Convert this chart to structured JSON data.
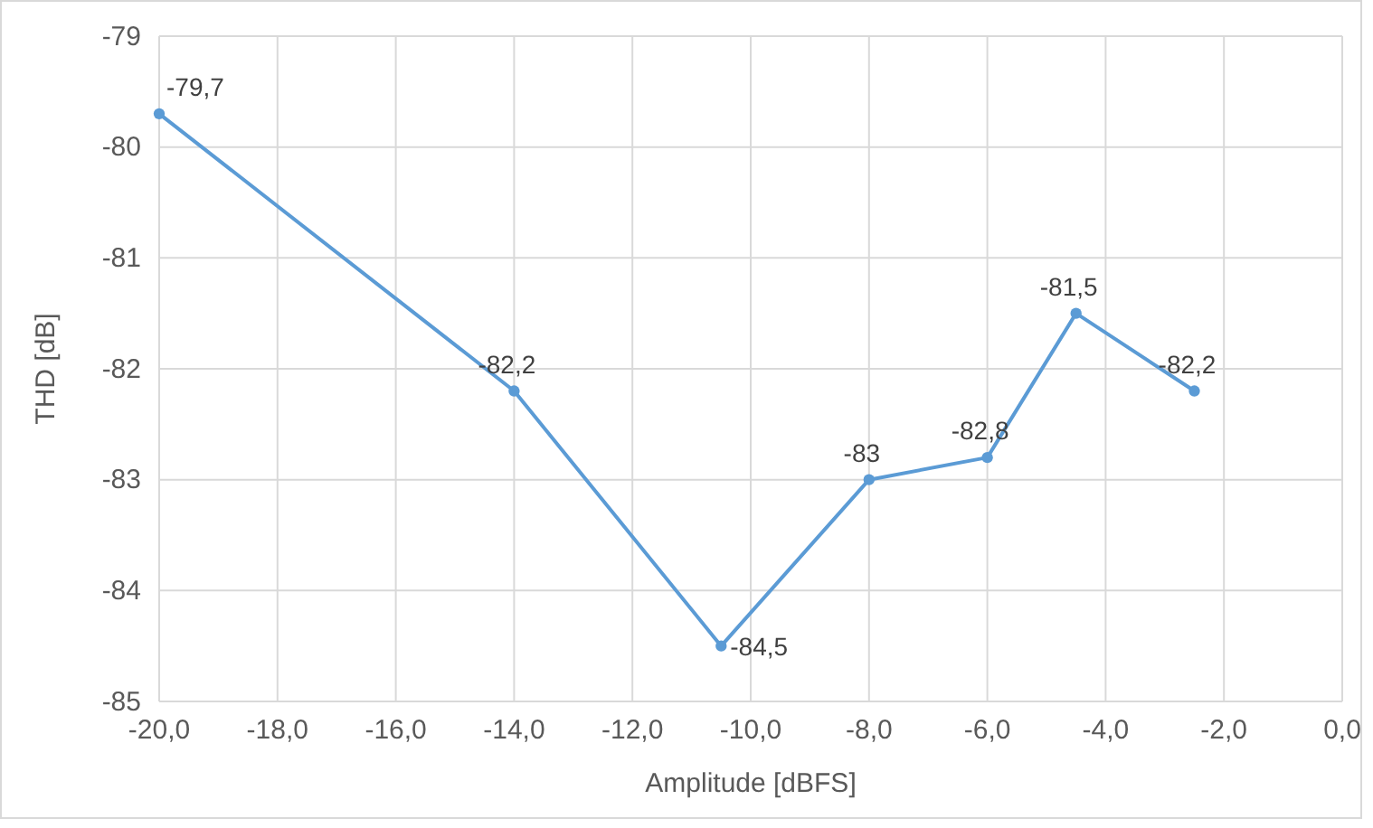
{
  "chart_data": {
    "type": "line",
    "xlabel": "Amplitude [dBFS]",
    "ylabel": "THD [dB]",
    "x": [
      -20,
      -14,
      -10.5,
      -8,
      -6,
      -4.5,
      -2.5
    ],
    "series": [
      {
        "color": "#5b9bd5",
        "values": [
          -79.7,
          -82.2,
          -84.5,
          -83,
          -82.8,
          -81.5,
          -82.2
        ],
        "value_labels": [
          "-79,7",
          "-82,2",
          "-84,5",
          "-83",
          "-82,8",
          "-81,5",
          "-82,2"
        ]
      }
    ],
    "xlim": [
      -20,
      0
    ],
    "xticks": [
      {
        "value": -20,
        "label": "-20,0"
      },
      {
        "value": -18,
        "label": "-18,0"
      },
      {
        "value": -16,
        "label": "-16,0"
      },
      {
        "value": -14,
        "label": "-14,0"
      },
      {
        "value": -12,
        "label": "-12,0"
      },
      {
        "value": -10,
        "label": "-10,0"
      },
      {
        "value": -8,
        "label": "-8,0"
      },
      {
        "value": -6,
        "label": "-6,0"
      },
      {
        "value": -4,
        "label": "-4,0"
      },
      {
        "value": -2,
        "label": "-2,0"
      },
      {
        "value": 0,
        "label": "0,0"
      }
    ],
    "ylim": [
      -85,
      -79
    ],
    "yticks": [
      -85,
      -84,
      -83,
      -82,
      -81,
      -80,
      -79
    ],
    "grid": true,
    "marker": "circle",
    "line_style": "solid"
  }
}
